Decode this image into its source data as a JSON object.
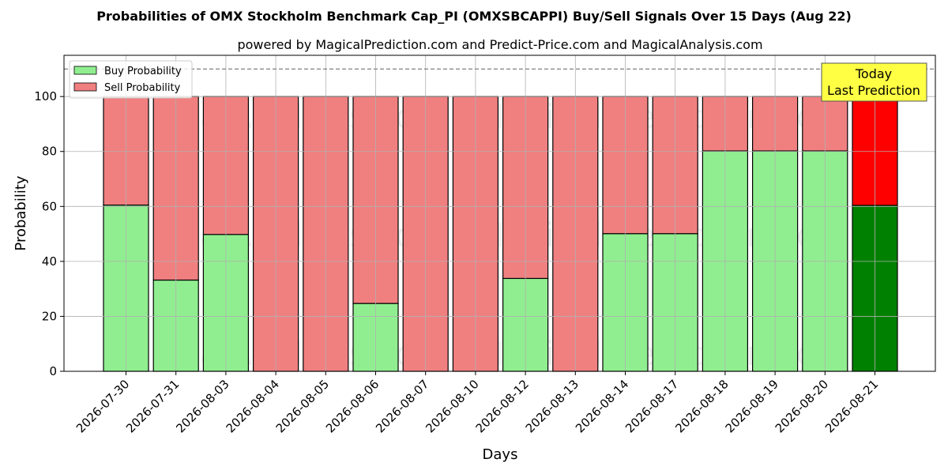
{
  "chart_data": {
    "type": "bar",
    "title": "Probabilities of OMX Stockholm Benchmark Cap_PI (OMXSBCAPPI) Buy/Sell Signals Over 15 Days (Aug 22)",
    "subtitle": "powered by MagicalPrediction.com and Predict-Price.com and MagicalAnalysis.com",
    "xlabel": "Days",
    "ylabel": "Probability",
    "ylim": [
      0,
      115
    ],
    "yticks": [
      0,
      20,
      40,
      60,
      80,
      100
    ],
    "grid": true,
    "stacked": true,
    "legend_placement": "top-left",
    "reference_line": 110,
    "categories": [
      "2026-07-30",
      "2026-07-31",
      "2026-08-03",
      "2026-08-04",
      "2026-08-05",
      "2026-08-06",
      "2026-08-07",
      "2026-08-10",
      "2026-08-12",
      "2026-08-13",
      "2026-08-14",
      "2026-08-17",
      "2026-08-18",
      "2026-08-19",
      "2026-08-20",
      "2026-08-21"
    ],
    "series": [
      {
        "name": "Buy Probability",
        "color": "#90ee90",
        "today_color": "#008000",
        "values": [
          60.5,
          33.2,
          49.8,
          0,
          0,
          24.7,
          0,
          0,
          33.8,
          0,
          50.1,
          50.1,
          80.2,
          80.2,
          80.2,
          60.4
        ]
      },
      {
        "name": "Sell Probability",
        "color": "#f08080",
        "today_color": "#ff0000",
        "values": [
          39.5,
          66.8,
          50.2,
          100,
          100,
          75.3,
          100,
          100,
          66.2,
          100,
          49.9,
          49.9,
          19.8,
          19.8,
          19.8,
          39.6
        ]
      }
    ],
    "annotation": {
      "lines": [
        "Today",
        "Last Prediction"
      ],
      "color": "#ffff44"
    },
    "watermarks": [
      "MagicalAnalysis.com",
      "MagicalPrediction.com"
    ]
  }
}
